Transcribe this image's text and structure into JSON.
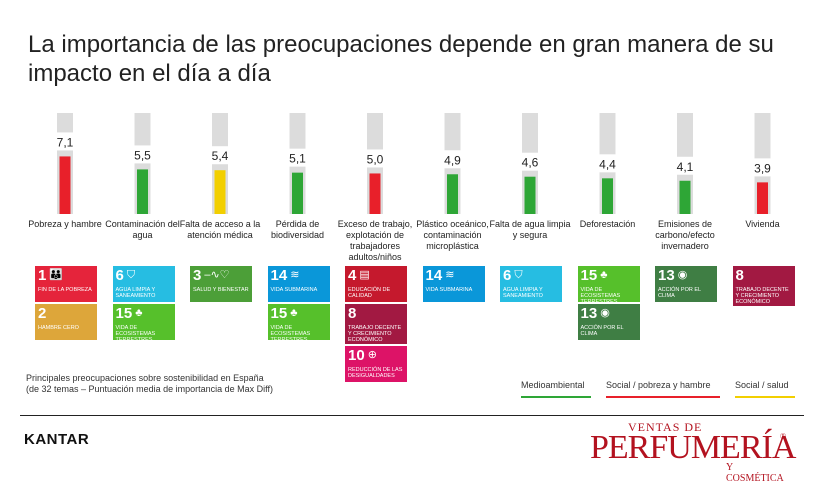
{
  "title": "La importancia de las preocupaciones depende en gran manera de su impacto en el día a día",
  "chart_data": {
    "type": "bar",
    "categories": [
      "Pobreza y hambre",
      "Contaminación del agua",
      "Falta de acceso a la atención médica",
      "Pérdida de biodiversidad",
      "Exceso de trabajo, explotación de trabajadores adultos/niños",
      "Plástico oceánico, contaminación microplástica",
      "Falta de agua limpia y segura",
      "Deforestación",
      "Emisiones de carbono/efecto invernadero",
      "Vivienda"
    ],
    "values": [
      7.1,
      5.5,
      5.4,
      5.1,
      5.0,
      4.9,
      4.6,
      4.4,
      4.1,
      3.9
    ],
    "value_labels": [
      "7,1",
      "5,5",
      "5,4",
      "5,1",
      "5,0",
      "4,9",
      "4,6",
      "4,4",
      "4,1",
      "3,9"
    ],
    "groups": [
      "social-pobreza",
      "medioambiental",
      "social-salud",
      "medioambiental",
      "social-pobreza",
      "medioambiental",
      "medioambiental",
      "medioambiental",
      "medioambiental",
      "social-pobreza"
    ],
    "ylim": [
      0,
      10
    ],
    "colors": {
      "medioambiental": "#2ea636",
      "social-pobreza": "#e8202a",
      "social-salud": "#f2cf00",
      "track": "#dcdcdc"
    }
  },
  "sdgs": [
    [
      {
        "num": "1",
        "icon": "👪",
        "label": "Fin de la pobreza",
        "color": "#e5243b"
      },
      {
        "num": "2",
        "icon": "",
        "label": "Hambre cero",
        "color": "#dda63a"
      }
    ],
    [
      {
        "num": "6",
        "icon": "⛉",
        "label": "Agua limpia y saneamiento",
        "color": "#26bde2"
      },
      {
        "num": "15",
        "icon": "♣",
        "label": "Vida de ecosistemas terrestres",
        "color": "#56c02b"
      }
    ],
    [
      {
        "num": "3",
        "icon": "–∿♡",
        "label": "Salud y bienestar",
        "color": "#4c9f38"
      }
    ],
    [
      {
        "num": "14",
        "icon": "≋",
        "label": "Vida submarina",
        "color": "#0a97d9"
      },
      {
        "num": "15",
        "icon": "♣",
        "label": "Vida de ecosistemas terrestres",
        "color": "#56c02b"
      }
    ],
    [
      {
        "num": "4",
        "icon": "▤",
        "label": "Educación de calidad",
        "color": "#c5192d"
      },
      {
        "num": "8",
        "icon": "",
        "label": "Trabajo decente y crecimiento económico",
        "color": "#a21942"
      },
      {
        "num": "10",
        "icon": "⊕",
        "label": "Reducción de las desigualdades",
        "color": "#dd1367"
      }
    ],
    [
      {
        "num": "14",
        "icon": "≋",
        "label": "Vida submarina",
        "color": "#0a97d9"
      }
    ],
    [
      {
        "num": "6",
        "icon": "⛉",
        "label": "Agua limpia y saneamiento",
        "color": "#26bde2"
      }
    ],
    [
      {
        "num": "15",
        "icon": "♣",
        "label": "Vida de ecosistemas terrestres",
        "color": "#56c02b"
      },
      {
        "num": "13",
        "icon": "◉",
        "label": "Acción por el clima",
        "color": "#3f7e44"
      }
    ],
    [
      {
        "num": "13",
        "icon": "◉",
        "label": "Acción por el clima",
        "color": "#3f7e44"
      }
    ],
    [
      {
        "num": "8",
        "icon": "",
        "label": "Trabajo decente y crecimiento económico",
        "color": "#a21942"
      }
    ]
  ],
  "note": {
    "line1": "Principales preocupaciones sobre sostenibilidad en España",
    "line2": "(de 32 temas – Puntuación media de importancia de Max Diff)"
  },
  "legend": [
    {
      "label": "Medioambiental",
      "color": "#2ea636"
    },
    {
      "label": "Social / pobreza y hambre",
      "color": "#e8202a"
    },
    {
      "label": "Social / salud",
      "color": "#f2cf00"
    }
  ],
  "brand": {
    "kantar": "KANTAR",
    "logo_line1": "VENTAS DE",
    "logo_line2": "PERFUMERÍA",
    "logo_line3": "Y COSMÉTICA",
    "logo_reg": "®"
  }
}
